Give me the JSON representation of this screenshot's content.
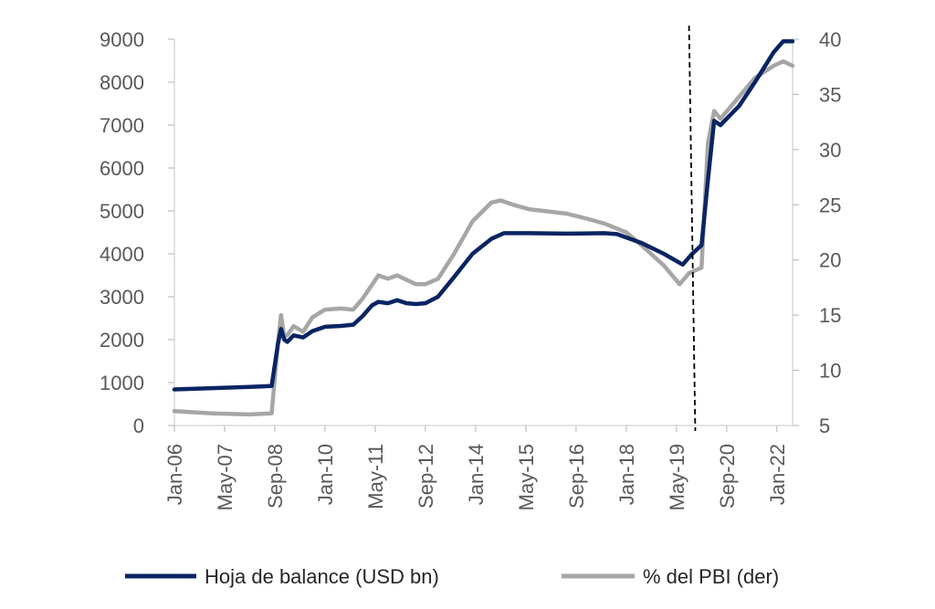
{
  "chart_data": {
    "type": "line",
    "title": "",
    "xlabel": "",
    "ylabel": "",
    "x_tick_labels": [
      "Jan-06",
      "May-07",
      "Sep-08",
      "Jan-10",
      "May-11",
      "Sep-12",
      "Jan-14",
      "May-15",
      "Sep-16",
      "Jan-18",
      "May-19",
      "Sep-20",
      "Jan-22"
    ],
    "y_left": {
      "ticks": [
        0,
        1000,
        2000,
        3000,
        4000,
        5000,
        6000,
        7000,
        8000,
        9000
      ],
      "lim": [
        0,
        9000
      ]
    },
    "y_right": {
      "ticks": [
        5,
        10,
        15,
        20,
        25,
        30,
        35,
        40
      ],
      "lim": [
        5,
        40
      ]
    },
    "x_range": [
      "2006-01",
      "2022-06"
    ],
    "annotation": {
      "type": "vertical-dashed-line",
      "x_from": "2019-09",
      "x_to": "2019-11"
    },
    "legend_position": "bottom",
    "series": [
      {
        "name": "Hoja de balance (USD bn)",
        "axis": "left",
        "color": "#0a2463",
        "points": [
          [
            "2006-01",
            840
          ],
          [
            "2007-01",
            870
          ],
          [
            "2008-01",
            900
          ],
          [
            "2008-08",
            920
          ],
          [
            "2008-10",
            1900
          ],
          [
            "2008-11",
            2250
          ],
          [
            "2008-12",
            2000
          ],
          [
            "2009-01",
            1950
          ],
          [
            "2009-03",
            2100
          ],
          [
            "2009-06",
            2050
          ],
          [
            "2009-09",
            2200
          ],
          [
            "2010-01",
            2300
          ],
          [
            "2010-06",
            2320
          ],
          [
            "2010-10",
            2350
          ],
          [
            "2011-01",
            2550
          ],
          [
            "2011-04",
            2800
          ],
          [
            "2011-06",
            2880
          ],
          [
            "2011-09",
            2850
          ],
          [
            "2011-12",
            2920
          ],
          [
            "2012-03",
            2850
          ],
          [
            "2012-06",
            2830
          ],
          [
            "2012-09",
            2850
          ],
          [
            "2013-01",
            3000
          ],
          [
            "2013-06",
            3450
          ],
          [
            "2013-12",
            4000
          ],
          [
            "2014-06",
            4350
          ],
          [
            "2014-10",
            4480
          ],
          [
            "2015-06",
            4480
          ],
          [
            "2016-06",
            4470
          ],
          [
            "2017-06",
            4480
          ],
          [
            "2017-10",
            4460
          ],
          [
            "2018-06",
            4250
          ],
          [
            "2019-01",
            4000
          ],
          [
            "2019-07",
            3750
          ],
          [
            "2019-10",
            4000
          ],
          [
            "2020-01",
            4200
          ],
          [
            "2020-03",
            5700
          ],
          [
            "2020-05",
            7100
          ],
          [
            "2020-07",
            7000
          ],
          [
            "2021-01",
            7450
          ],
          [
            "2021-06",
            8000
          ],
          [
            "2021-12",
            8700
          ],
          [
            "2022-03",
            8950
          ],
          [
            "2022-06",
            8950
          ]
        ]
      },
      {
        "name": "% del PBI (der)",
        "axis": "right",
        "color": "#a6a6a6",
        "points": [
          [
            "2006-01",
            6.3
          ],
          [
            "2007-01",
            6.1
          ],
          [
            "2008-01",
            6.0
          ],
          [
            "2008-08",
            6.1
          ],
          [
            "2008-10",
            12.5
          ],
          [
            "2008-11",
            15.0
          ],
          [
            "2008-12",
            13.0
          ],
          [
            "2009-01",
            13.2
          ],
          [
            "2009-03",
            14.0
          ],
          [
            "2009-06",
            13.5
          ],
          [
            "2009-09",
            14.8
          ],
          [
            "2010-01",
            15.5
          ],
          [
            "2010-06",
            15.6
          ],
          [
            "2010-10",
            15.5
          ],
          [
            "2011-01",
            16.5
          ],
          [
            "2011-06",
            18.6
          ],
          [
            "2011-09",
            18.3
          ],
          [
            "2011-12",
            18.6
          ],
          [
            "2012-03",
            18.2
          ],
          [
            "2012-06",
            17.8
          ],
          [
            "2012-09",
            17.8
          ],
          [
            "2013-01",
            18.3
          ],
          [
            "2013-06",
            20.5
          ],
          [
            "2013-12",
            23.5
          ],
          [
            "2014-06",
            25.2
          ],
          [
            "2014-09",
            25.4
          ],
          [
            "2015-01",
            25.0
          ],
          [
            "2015-06",
            24.6
          ],
          [
            "2016-06",
            24.2
          ],
          [
            "2017-01",
            23.7
          ],
          [
            "2017-06",
            23.3
          ],
          [
            "2018-01",
            22.5
          ],
          [
            "2018-06",
            21.3
          ],
          [
            "2019-01",
            19.5
          ],
          [
            "2019-06",
            17.8
          ],
          [
            "2019-09",
            18.8
          ],
          [
            "2020-01",
            19.3
          ],
          [
            "2020-03",
            30.5
          ],
          [
            "2020-05",
            33.5
          ],
          [
            "2020-07",
            32.8
          ],
          [
            "2021-01",
            34.8
          ],
          [
            "2021-06",
            36.5
          ],
          [
            "2021-12",
            37.6
          ],
          [
            "2022-03",
            38.0
          ],
          [
            "2022-06",
            37.6
          ]
        ]
      }
    ]
  }
}
